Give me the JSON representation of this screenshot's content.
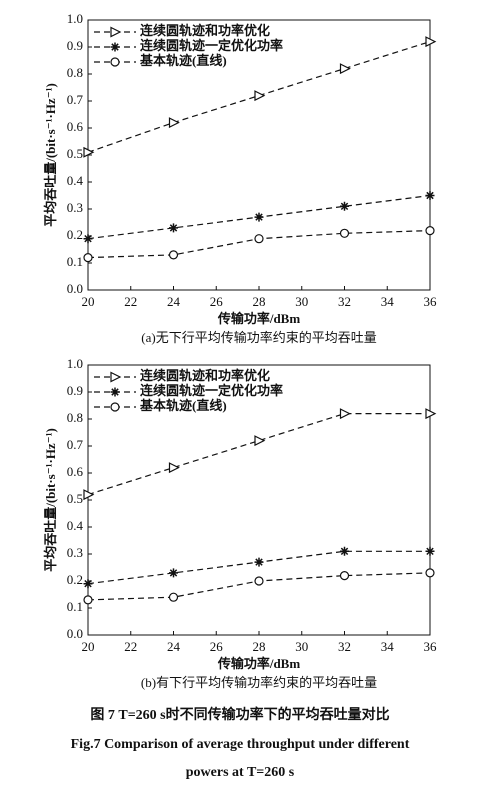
{
  "chart_data": [
    {
      "type": "line",
      "xlabel": "传输功率/dBm",
      "ylabel": "平均吞吐量/(bit·s⁻¹·Hz⁻¹)",
      "caption": "(a)无下行平均传输功率约束的平均吞吐量",
      "x": [
        20,
        24,
        28,
        32,
        36
      ],
      "xlim": [
        20,
        36
      ],
      "xticks": [
        20,
        22,
        24,
        26,
        28,
        30,
        32,
        34,
        36
      ],
      "ylim": [
        0,
        1
      ],
      "yticks": [
        {
          "value": 0,
          "label": "0.0"
        },
        0.1,
        0.2,
        0.3,
        0.4,
        0.5,
        0.6,
        0.7,
        0.8,
        0.9,
        {
          "value": 1,
          "label": "1.0"
        }
      ],
      "legend": "upper left",
      "series": [
        {
          "name": "连续圆轨迹和功率优化",
          "color": "#111111",
          "marker": "triangle",
          "values": [
            0.51,
            0.62,
            0.72,
            0.82,
            0.92
          ]
        },
        {
          "name": "连续圆轨迹一定优化功率",
          "color": "#111111",
          "marker": "star",
          "values": [
            0.19,
            0.23,
            0.27,
            0.31,
            0.35
          ]
        },
        {
          "name": "基本轨迹(直线)",
          "color": "#111111",
          "marker": "circle",
          "values": [
            0.12,
            0.13,
            0.19,
            0.21,
            0.22
          ]
        }
      ]
    },
    {
      "type": "line",
      "xlabel": "传输功率/dBm",
      "ylabel": "平均吞吐量/(bit·s⁻¹·Hz⁻¹)",
      "caption": "(b)有下行平均传输功率约束的平均吞吐量",
      "x": [
        20,
        24,
        28,
        32,
        36
      ],
      "xlim": [
        20,
        36
      ],
      "xticks": [
        20,
        22,
        24,
        26,
        28,
        30,
        32,
        34,
        36
      ],
      "ylim": [
        0,
        1
      ],
      "yticks": [
        {
          "value": 0,
          "label": "0.0"
        },
        0.1,
        0.2,
        0.3,
        0.4,
        0.5,
        0.6,
        0.7,
        0.8,
        0.9,
        {
          "value": 1,
          "label": "1.0"
        }
      ],
      "legend": "upper left",
      "series": [
        {
          "name": "连续圆轨迹和功率优化",
          "color": "#111111",
          "marker": "triangle",
          "values": [
            0.52,
            0.62,
            0.72,
            0.82,
            0.82
          ]
        },
        {
          "name": "连续圆轨迹一定优化功率",
          "color": "#111111",
          "marker": "star",
          "values": [
            0.19,
            0.23,
            0.27,
            0.31,
            0.31
          ]
        },
        {
          "name": "基本轨迹(直线)",
          "color": "#111111",
          "marker": "circle",
          "values": [
            0.13,
            0.14,
            0.2,
            0.22,
            0.23
          ]
        }
      ]
    }
  ],
  "figure_caption": {
    "cn": "图 7    T=260 s时不同传输功率下的平均吞吐量对比",
    "en": [
      "Fig.7    Comparison of average throughput under different",
      "powers at T=260 s"
    ]
  }
}
